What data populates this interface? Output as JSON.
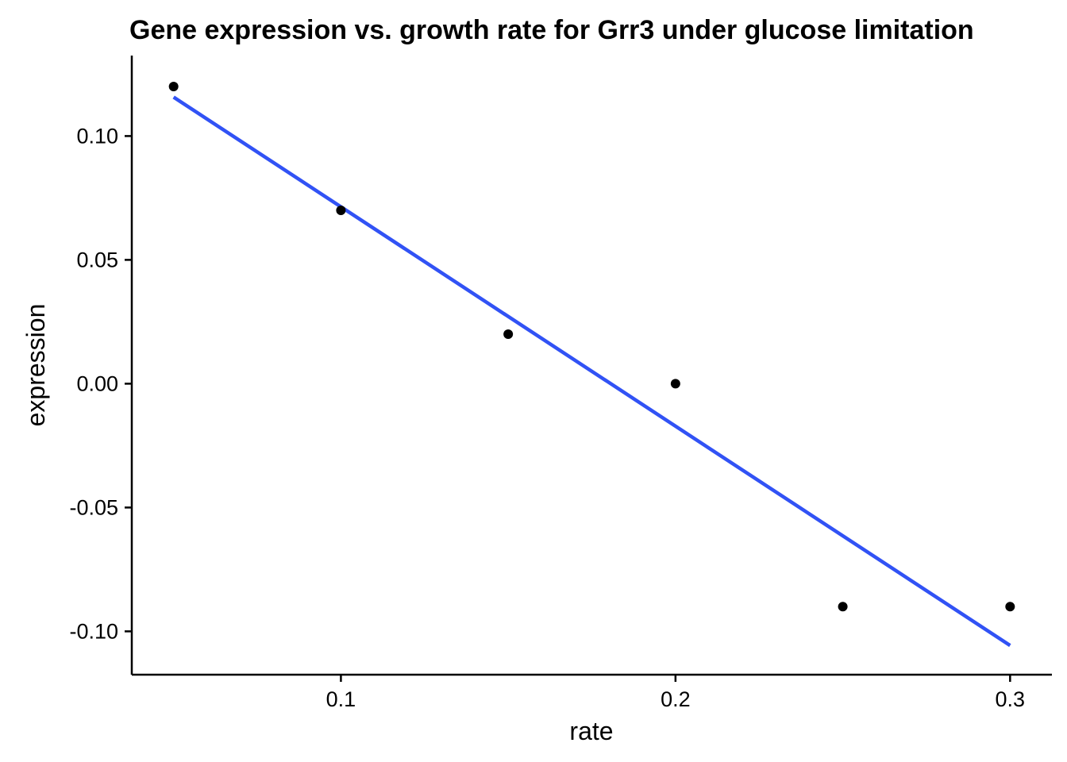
{
  "chart_data": {
    "type": "scatter",
    "title": "Gene expression vs. growth rate for Grr3 under glucose limitation",
    "xlabel": "rate",
    "ylabel": "expression",
    "x_ticks": [
      {
        "value": 0.1,
        "label": "0.1"
      },
      {
        "value": 0.2,
        "label": "0.2"
      },
      {
        "value": 0.3,
        "label": "0.3"
      }
    ],
    "y_ticks": [
      {
        "value": 0.1,
        "label": "0.10"
      },
      {
        "value": 0.05,
        "label": "0.05"
      },
      {
        "value": 0.0,
        "label": "0.00"
      },
      {
        "value": -0.05,
        "label": "-0.05"
      },
      {
        "value": -0.1,
        "label": "-0.10"
      }
    ],
    "xlim": [
      0.0375,
      0.3125
    ],
    "ylim": [
      -0.1175,
      0.1325
    ],
    "points": [
      {
        "x": 0.05,
        "y": 0.12
      },
      {
        "x": 0.1,
        "y": 0.07
      },
      {
        "x": 0.15,
        "y": 0.02
      },
      {
        "x": 0.2,
        "y": 0.0
      },
      {
        "x": 0.25,
        "y": -0.09
      },
      {
        "x": 0.3,
        "y": -0.09
      }
    ],
    "trend_line": {
      "x": [
        0.05,
        0.3
      ],
      "y": [
        0.1157,
        -0.1057
      ]
    },
    "grid": false,
    "colors": {
      "points": "#000000",
      "trend_line": "#3152f5",
      "axes": "#000000"
    }
  }
}
